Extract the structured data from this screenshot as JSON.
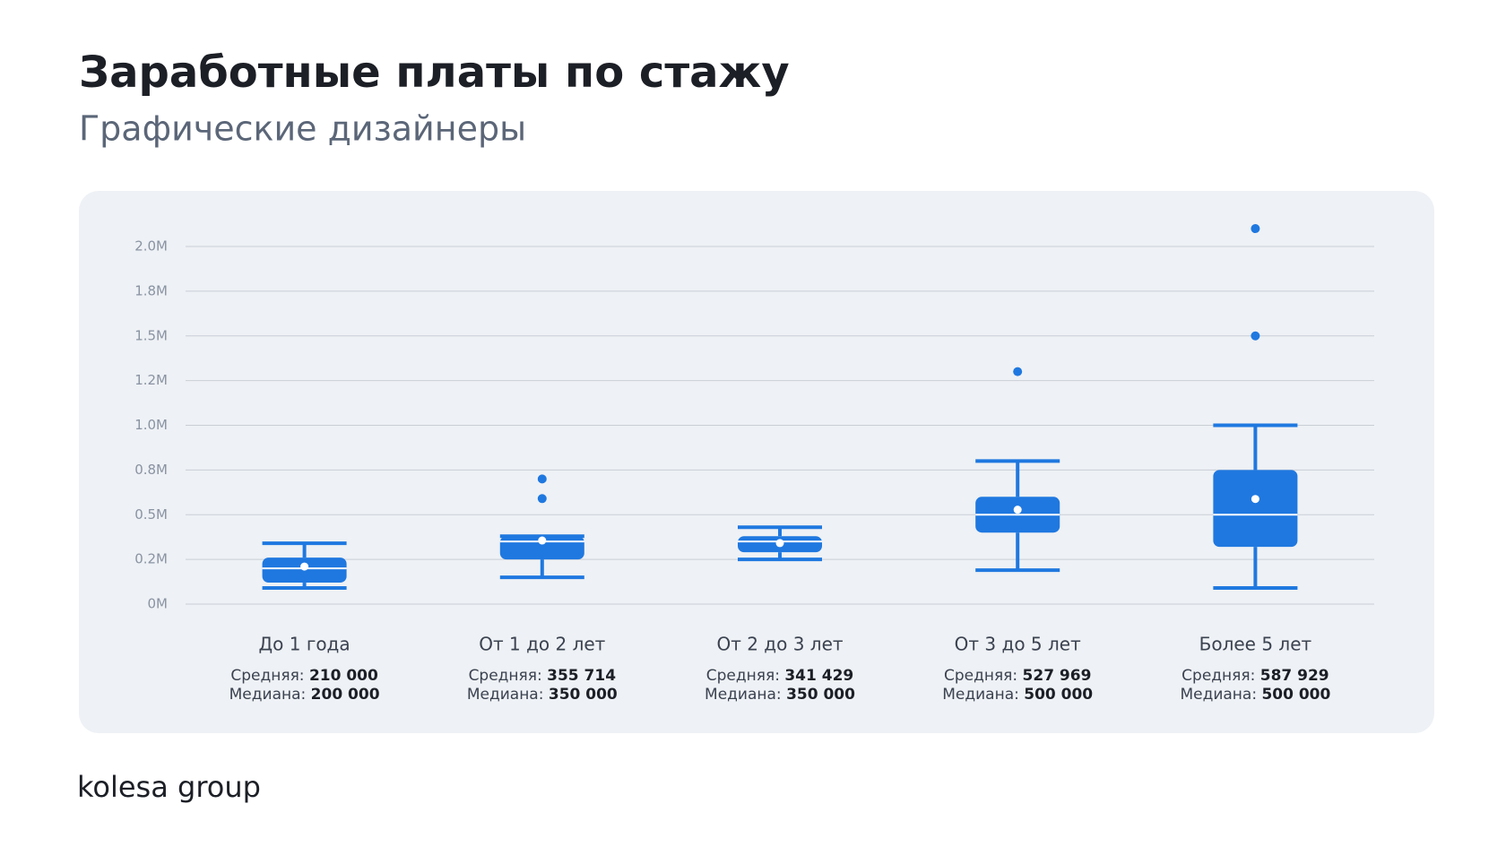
{
  "chart_data": {
    "type": "box",
    "title": "Заработные платы по стажу",
    "subtitle": "Графические дизайнеры",
    "categories": [
      "До 1 года",
      "От 1 до 2 лет",
      "От 2 до 3 лет",
      "От 3 до 5 лет",
      "Более 5 лет"
    ],
    "color": "#1f78e0",
    "whisker_low": [
      90000,
      150000,
      250000,
      190000,
      90000
    ],
    "q1": [
      120000,
      250000,
      290000,
      400000,
      320000
    ],
    "q3": [
      260000,
      380000,
      380000,
      600000,
      750000
    ],
    "whisker_high": [
      340000,
      380000,
      430000,
      800000,
      1000000
    ],
    "outliers": [
      [],
      [
        590000,
        700000
      ],
      [],
      [
        1300000
      ],
      [
        1500000,
        2100000
      ]
    ],
    "mean": {
      "label": "Средняя:",
      "values": [
        210000,
        355714,
        341429,
        527969,
        587929
      ],
      "value_labels": [
        "210 000",
        "355 714",
        "341 429",
        "527 969",
        "587 929"
      ]
    },
    "median": {
      "label": "Медиана:",
      "values": [
        200000,
        350000,
        350000,
        500000,
        500000
      ],
      "value_labels": [
        "200 000",
        "350 000",
        "350 000",
        "500 000",
        "500 000"
      ]
    },
    "ylim": [
      0,
      2000000
    ],
    "yticks": [
      {
        "value": 0,
        "label": "0M"
      },
      {
        "value": 250000,
        "label": "0.2M"
      },
      {
        "value": 500000,
        "label": "0.5M"
      },
      {
        "value": 750000,
        "label": "0.8M"
      },
      {
        "value": 1000000,
        "label": "1.0M"
      },
      {
        "value": 1250000,
        "label": "1.2M"
      },
      {
        "value": 1500000,
        "label": "1.5M"
      },
      {
        "value": 1750000,
        "label": "1.8M"
      },
      {
        "value": 2000000,
        "label": "2.0M"
      }
    ],
    "grid": true
  },
  "footer": {
    "logo": "kolesa group"
  }
}
